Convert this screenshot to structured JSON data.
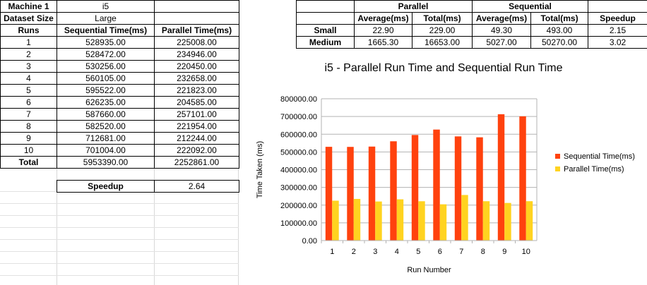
{
  "left_table": {
    "machine_label": "Machine 1",
    "machine_value": "i5",
    "dataset_label": "Dataset Size",
    "dataset_value": "Large",
    "headers": [
      "Runs",
      "Sequential Time(ms)",
      "Parallel Time(ms)"
    ],
    "rows": [
      [
        "1",
        "528935.00",
        "225008.00"
      ],
      [
        "2",
        "528472.00",
        "234946.00"
      ],
      [
        "3",
        "530256.00",
        "220450.00"
      ],
      [
        "4",
        "560105.00",
        "232658.00"
      ],
      [
        "5",
        "595522.00",
        "221823.00"
      ],
      [
        "6",
        "626235.00",
        "204585.00"
      ],
      [
        "7",
        "587660.00",
        "257101.00"
      ],
      [
        "8",
        "582520.00",
        "221954.00"
      ],
      [
        "9",
        "712681.00",
        "212244.00"
      ],
      [
        "10",
        "701004.00",
        "222092.00"
      ]
    ],
    "total_label": "Total",
    "total_seq": "5953390.00",
    "total_par": "2252861.00",
    "speedup_label": "Speedup",
    "speedup_value": "2.64"
  },
  "right_table": {
    "group_headers": [
      "Parallel",
      "Sequential"
    ],
    "sub_headers": [
      "Average(ms)",
      "Total(ms)",
      "Average(ms)",
      "Total(ms)",
      "Speedup"
    ],
    "rows": [
      [
        "Small",
        "22.90",
        "229.00",
        "49.30",
        "493.00",
        "2.15"
      ],
      [
        "Medium",
        "1665.30",
        "16653.00",
        "5027.00",
        "50270.00",
        "3.02"
      ]
    ]
  },
  "chart_data": {
    "type": "bar",
    "title": "i5 - Parallel Run Time and Sequential Run Time",
    "xlabel": "Run Number",
    "ylabel": "Time Taken (ms)",
    "categories": [
      "1",
      "2",
      "3",
      "4",
      "5",
      "6",
      "7",
      "8",
      "9",
      "10"
    ],
    "ylim": [
      0,
      800000
    ],
    "yticks": [
      "0.00",
      "100000.00",
      "200000.00",
      "300000.00",
      "400000.00",
      "500000.00",
      "600000.00",
      "700000.00",
      "800000.00"
    ],
    "grid": "horizontal",
    "legend_position": "right",
    "series": [
      {
        "name": "Sequential Time(ms)",
        "color": "#ff420e",
        "values": [
          528935,
          528472,
          530256,
          560105,
          595522,
          626235,
          587660,
          582520,
          712681,
          701004
        ]
      },
      {
        "name": "Parallel Time(ms)",
        "color": "#ffd320",
        "values": [
          225008,
          234946,
          220450,
          232658,
          221823,
          204585,
          257101,
          221954,
          212244,
          222092
        ]
      }
    ]
  }
}
